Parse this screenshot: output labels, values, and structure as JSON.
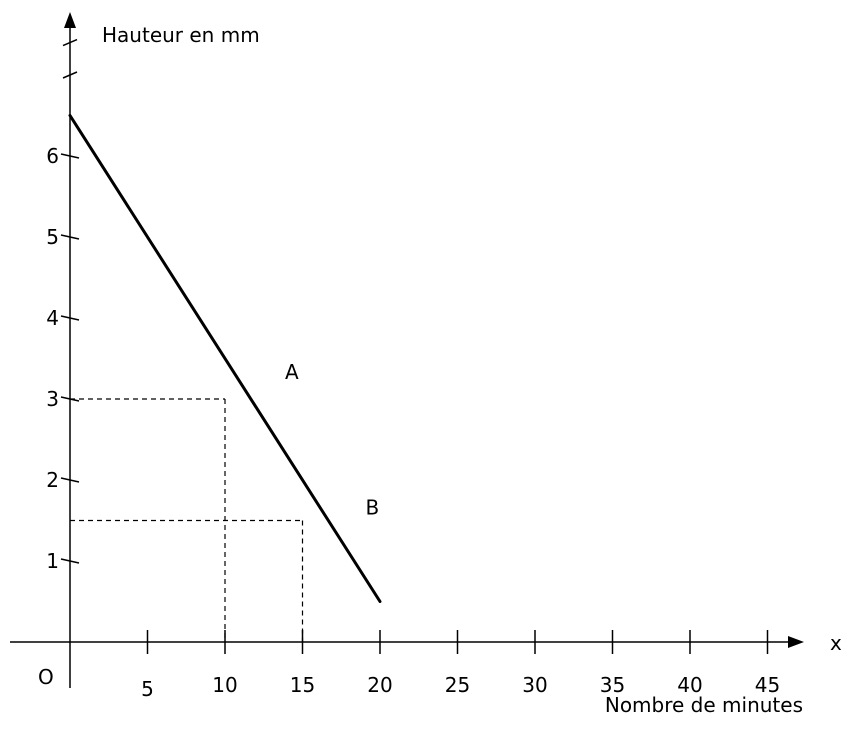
{
  "chart_data": {
    "type": "line",
    "ylabel": "Hauteur en mm",
    "xlabel": "Nombre de minutes",
    "x_axis_name": "x",
    "origin_label": "O",
    "x_ticks": [
      5,
      10,
      15,
      20,
      25,
      30,
      35,
      40,
      45
    ],
    "y_ticks": [
      1,
      2,
      3,
      4,
      5,
      6
    ],
    "xlim": [
      0,
      47
    ],
    "ylim": [
      0,
      7
    ],
    "line": {
      "x": [
        0,
        20
      ],
      "y": [
        6.5,
        0.5
      ]
    },
    "points": [
      {
        "label": "A",
        "x": 10,
        "y": 3
      },
      {
        "label": "B",
        "x": 15,
        "y": 1.5
      }
    ],
    "guides": [
      {
        "x": 10,
        "y": 3
      },
      {
        "x": 15,
        "y": 1.5
      }
    ],
    "colors": {
      "ink": "#000000"
    }
  }
}
